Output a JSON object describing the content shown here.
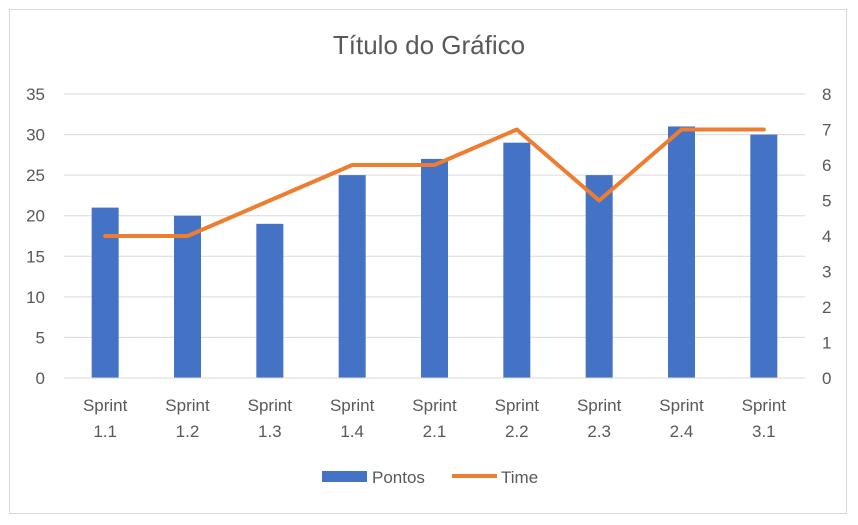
{
  "chart_data": {
    "type": "bar",
    "title": "Título do Gráfico",
    "categories": [
      [
        "Sprint",
        "1.1"
      ],
      [
        "Sprint",
        "1.2"
      ],
      [
        "Sprint",
        "1.3"
      ],
      [
        "Sprint",
        "1.4"
      ],
      [
        "Sprint",
        "2.1"
      ],
      [
        "Sprint",
        "2.2"
      ],
      [
        "Sprint",
        "2.3"
      ],
      [
        "Sprint",
        "2.4"
      ],
      [
        "Sprint",
        "3.1"
      ]
    ],
    "series": [
      {
        "name": "Pontos",
        "type": "bar",
        "axis": "left",
        "color": "#4472C4",
        "values": [
          21,
          20,
          19,
          25,
          27,
          29,
          25,
          31,
          30
        ]
      },
      {
        "name": "Time",
        "type": "line",
        "axis": "right",
        "color": "#ED7D31",
        "values": [
          4,
          4,
          5,
          6,
          6,
          7,
          5,
          7,
          7
        ]
      }
    ],
    "y_left": {
      "min": 0,
      "max": 35,
      "step": 5,
      "ticks": [
        "0",
        "5",
        "10",
        "15",
        "20",
        "25",
        "30",
        "35"
      ]
    },
    "y_right": {
      "min": 0,
      "max": 8,
      "step": 1,
      "ticks": [
        "0",
        "1",
        "2",
        "3",
        "4",
        "5",
        "6",
        "7",
        "8"
      ]
    },
    "grid": true,
    "legend": "bottom"
  }
}
